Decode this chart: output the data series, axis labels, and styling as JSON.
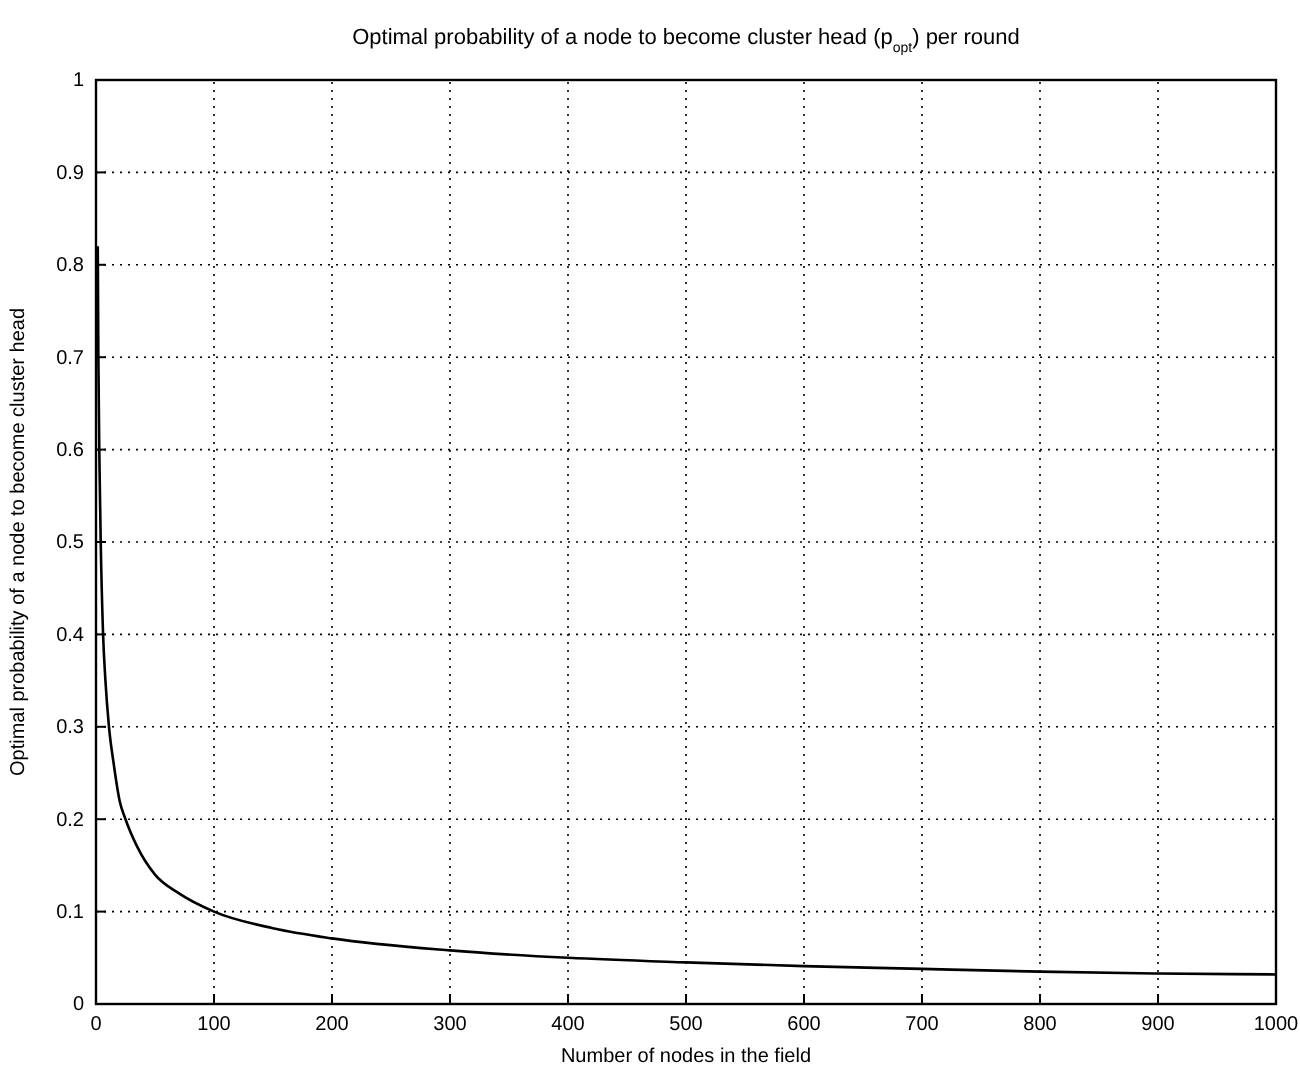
{
  "chart_data": {
    "type": "line",
    "title": "Optimal probability of a node to become cluster head (p$_{opt}$) per round",
    "xlabel": "Number of nodes in the field",
    "ylabel": "Optimal probability of a node to become cluster head",
    "x": [
      1.5,
      2,
      3,
      4,
      6,
      8,
      11,
      15,
      20,
      25,
      35,
      50,
      70,
      100,
      150,
      200,
      300,
      400,
      500,
      600,
      700,
      800,
      900,
      1000
    ],
    "series": [
      {
        "color": "#000000",
        "values": [
          0.82,
          0.7,
          0.58,
          0.5,
          0.4,
          0.35,
          0.3,
          0.26,
          0.22,
          0.2,
          0.17,
          0.14,
          0.12,
          0.1,
          0.082,
          0.071,
          0.058,
          0.05,
          0.045,
          0.041,
          0.038,
          0.035,
          0.033,
          0.032
        ]
      }
    ],
    "xlim": [
      0,
      1000
    ],
    "xticks": [
      0,
      100,
      200,
      300,
      400,
      500,
      600,
      700,
      800,
      900,
      1000
    ],
    "ylim": [
      0,
      1
    ],
    "yticks": [
      0,
      0.1,
      0.2,
      0.3,
      0.4,
      0.5,
      0.6,
      0.7,
      0.8,
      0.9,
      1
    ],
    "grid": true,
    "line_style": "solid",
    "marker": "none"
  }
}
